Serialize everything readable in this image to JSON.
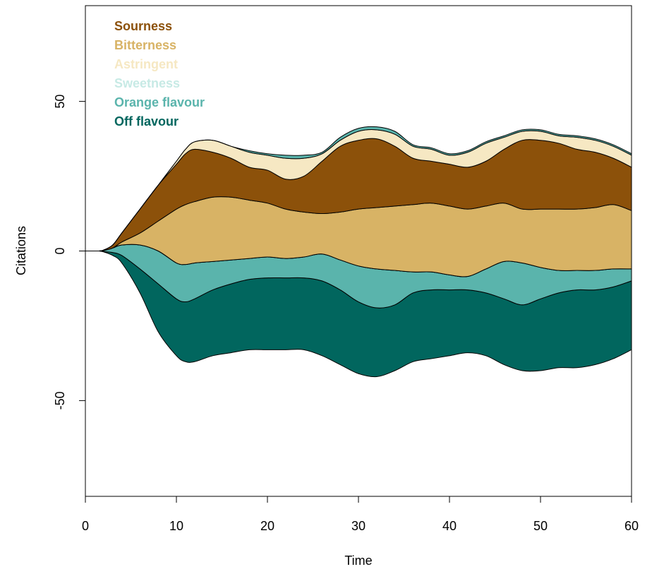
{
  "chart_data": {
    "type": "area",
    "subtype": "streamgraph",
    "title": "",
    "xlabel": "Time",
    "ylabel": "Citations",
    "xlim": [
      0,
      60
    ],
    "ylim": [
      -82,
      82
    ],
    "x_ticks": [
      0,
      10,
      20,
      30,
      40,
      50,
      60
    ],
    "y_ticks": [
      -50,
      0,
      50
    ],
    "grid": false,
    "legend_position": "top-left",
    "x": [
      1.5,
      2,
      3,
      4,
      6,
      8,
      10,
      11,
      12,
      14,
      16,
      18,
      20,
      22,
      24,
      26,
      28,
      30,
      32,
      34,
      36,
      38,
      40,
      42,
      44,
      46,
      48,
      50,
      52,
      54,
      56,
      58,
      60
    ],
    "boundaries": [
      [
        0,
        -0.3,
        -1.5,
        -4,
        -14,
        -27,
        -35,
        -37,
        -37,
        -35,
        -34,
        -33,
        -33,
        -33,
        -33,
        -35,
        -38,
        -41,
        -42,
        -40,
        -37,
        -36,
        -35,
        -34,
        -35,
        -38,
        -40,
        -40,
        -39,
        -39,
        -38,
        -36,
        -33
      ],
      [
        0,
        -0.2,
        -0.5,
        -1.5,
        -6,
        -11,
        -16,
        -17,
        -16,
        -13,
        -11,
        -9.5,
        -9,
        -9,
        -9,
        -10,
        -13,
        -17,
        -19,
        -18,
        -14,
        -13,
        -13,
        -13,
        -14,
        -16,
        -18,
        -16,
        -14,
        -13,
        -13,
        -12,
        -10
      ],
      [
        0,
        0.1,
        1,
        2,
        2,
        0,
        -4,
        -4.5,
        -4,
        -3.5,
        -3,
        -2.5,
        -2,
        -2.5,
        -2,
        -1,
        -3,
        -5,
        -6,
        -6.5,
        -7,
        -7,
        -8,
        -8.5,
        -6,
        -3.5,
        -4,
        -5.5,
        -6.5,
        -6.5,
        -6.5,
        -6,
        -6
      ],
      [
        0,
        0.1,
        1,
        2,
        2,
        0,
        -4,
        -4.5,
        -4,
        -3.5,
        -3,
        -2.5,
        -2,
        -2.5,
        -2,
        -1,
        -3,
        -5,
        -6,
        -6.5,
        -7,
        -7,
        -8,
        -8.5,
        -6,
        -3.5,
        -4,
        -5.5,
        -6.5,
        -6.5,
        -6.5,
        -6,
        -6
      ],
      [
        0,
        0.2,
        1,
        3,
        6,
        10,
        14,
        15.5,
        16.5,
        18,
        18,
        17,
        16,
        14,
        13,
        12.5,
        13,
        14,
        14.5,
        15,
        15.5,
        16,
        15,
        14,
        15,
        16,
        14,
        14,
        14,
        14,
        14.5,
        15.5,
        13.5
      ],
      [
        0,
        0.3,
        2,
        6,
        14,
        22,
        29,
        32.5,
        34,
        33,
        31,
        28,
        27,
        24,
        25,
        30,
        35,
        37,
        37.5,
        35,
        31,
        30,
        29,
        28,
        30,
        34,
        37,
        37,
        36,
        34,
        33,
        31,
        28
      ],
      [
        0,
        0.3,
        2,
        6,
        14,
        22,
        30,
        34,
        36.5,
        37,
        35,
        33,
        32,
        31,
        31,
        32.5,
        37,
        40,
        40.5,
        39,
        35,
        34,
        32,
        33,
        36,
        38,
        40,
        40,
        38.5,
        38,
        37,
        35,
        32
      ],
      [
        0,
        0.3,
        2,
        6,
        14,
        22,
        30,
        34,
        36.5,
        37,
        35,
        33.5,
        32.5,
        32,
        32,
        33,
        38,
        41,
        41.5,
        40,
        35.5,
        34.5,
        32.5,
        33.5,
        36.5,
        38.5,
        40.5,
        40.5,
        39,
        38.5,
        37.5,
        35.5,
        32.5
      ]
    ],
    "series": [
      {
        "name": "Off flavour",
        "color": "#01665e"
      },
      {
        "name": "Orange flavour",
        "color": "#5ab4ac"
      },
      {
        "name": "Sweetness",
        "color": "#c7eae5"
      },
      {
        "name": "Bitterness",
        "color": "#d8b365"
      },
      {
        "name": "Sourness",
        "color": "#8c510a"
      },
      {
        "name": "Astringent",
        "color": "#f6e8c3"
      },
      {
        "name": "Orange flavour",
        "color": "#5ab4ac"
      }
    ],
    "legend": [
      {
        "label": "Sourness",
        "color": "#8c510a"
      },
      {
        "label": "Bitterness",
        "color": "#d8b365"
      },
      {
        "label": "Astringent",
        "color": "#f6e8c3"
      },
      {
        "label": "Sweetness",
        "color": "#c7eae5"
      },
      {
        "label": "Orange flavour",
        "color": "#5ab4ac"
      },
      {
        "label": "Off flavour",
        "color": "#01665e"
      }
    ]
  }
}
